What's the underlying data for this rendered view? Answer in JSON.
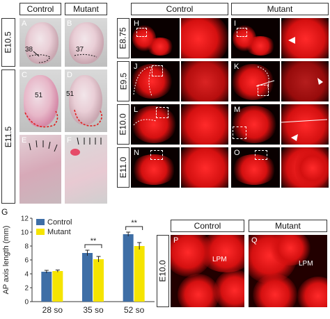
{
  "left_headers": {
    "control": "Control",
    "mutant": "Mutant"
  },
  "right_headers": {
    "control": "Control",
    "mutant": "Mutant"
  },
  "bottom_headers": {
    "control": "Control",
    "mutant": "Mutant"
  },
  "stages_left": [
    "E10.5",
    "E11.5"
  ],
  "stages_right": [
    "E8.75",
    "E9.5",
    "E10.0",
    "E11.0"
  ],
  "stage_bottom": "E10.0",
  "panels": {
    "A": "A",
    "B": "B",
    "C": "C",
    "D": "D",
    "E": "E",
    "F": "F",
    "H": "H",
    "I": "I",
    "J": "J",
    "K": "K",
    "L": "L",
    "M": "M",
    "N": "N",
    "O": "O",
    "P": "P",
    "Q": "Q"
  },
  "somite_counts": {
    "A": "38",
    "B": "37",
    "C": "51",
    "D": "51"
  },
  "lpm": {
    "P": "LPM",
    "Q": "LPM"
  },
  "G_label": "G",
  "chart_data": {
    "type": "bar",
    "title": "",
    "categories": [
      "28 so",
      "35 so",
      "52 so"
    ],
    "xlabel": "",
    "ylabel": "AP axis length (mm)",
    "ylim": [
      0,
      12
    ],
    "yticks": [
      0,
      2,
      4,
      6,
      8,
      10,
      12
    ],
    "legend": "top-left",
    "series": [
      {
        "name": "Control",
        "color": "#3e6ea6",
        "values": [
          4.3,
          7.0,
          9.7
        ],
        "errors": [
          0.2,
          0.4,
          0.3
        ]
      },
      {
        "name": "Mutant",
        "color": "#f5e400",
        "values": [
          4.4,
          6.1,
          8.0
        ],
        "errors": [
          0.15,
          0.4,
          0.5
        ]
      }
    ],
    "significance": [
      {
        "category": "35 so",
        "label": "**"
      },
      {
        "category": "52 so",
        "label": "**"
      }
    ]
  }
}
